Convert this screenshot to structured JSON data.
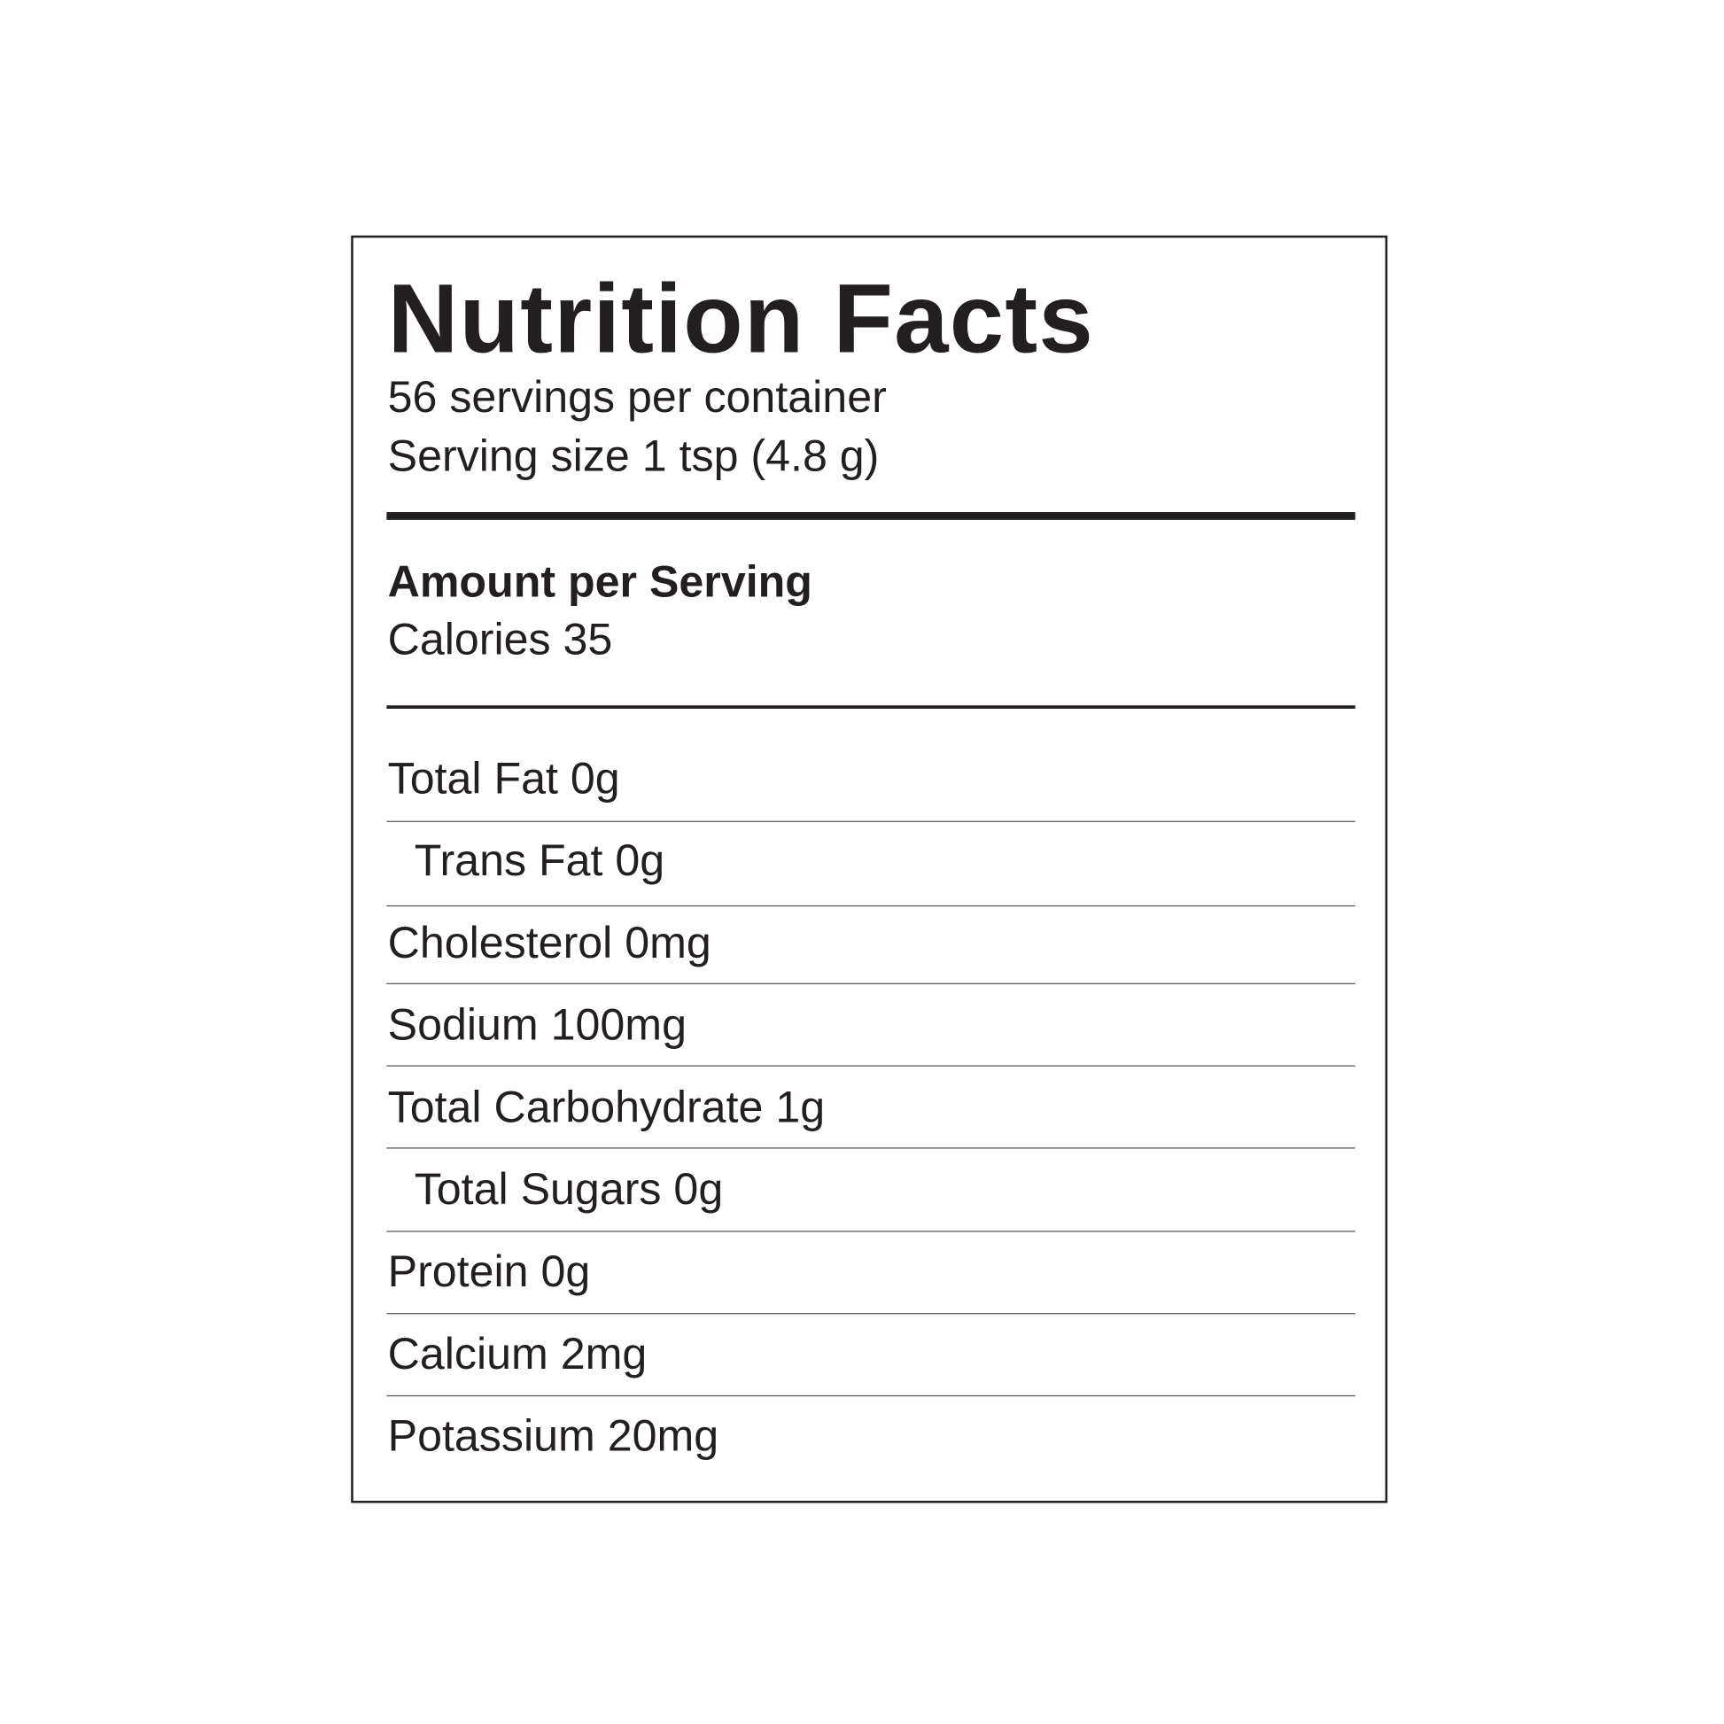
{
  "title": "Nutrition Facts",
  "servings_per_container": "56 servings per container",
  "serving_size": "Serving size 1 tsp (4.8 g)",
  "amount_per_serving": "Amount per Serving",
  "calories": "Calories 35",
  "nutrients": [
    {
      "label": "Total Fat 0g",
      "indent": false
    },
    {
      "label": "Trans Fat 0g",
      "indent": true
    },
    {
      "label": "Cholesterol 0mg",
      "indent": false
    },
    {
      "label": "Sodium 100mg",
      "indent": false
    },
    {
      "label": "Total Carbohydrate 1g",
      "indent": false
    },
    {
      "label": "Total Sugars 0g",
      "indent": true
    },
    {
      "label": "Protein 0g",
      "indent": false
    },
    {
      "label": "Calcium 2mg",
      "indent": false
    },
    {
      "label": "Potassium 20mg",
      "indent": false
    }
  ]
}
